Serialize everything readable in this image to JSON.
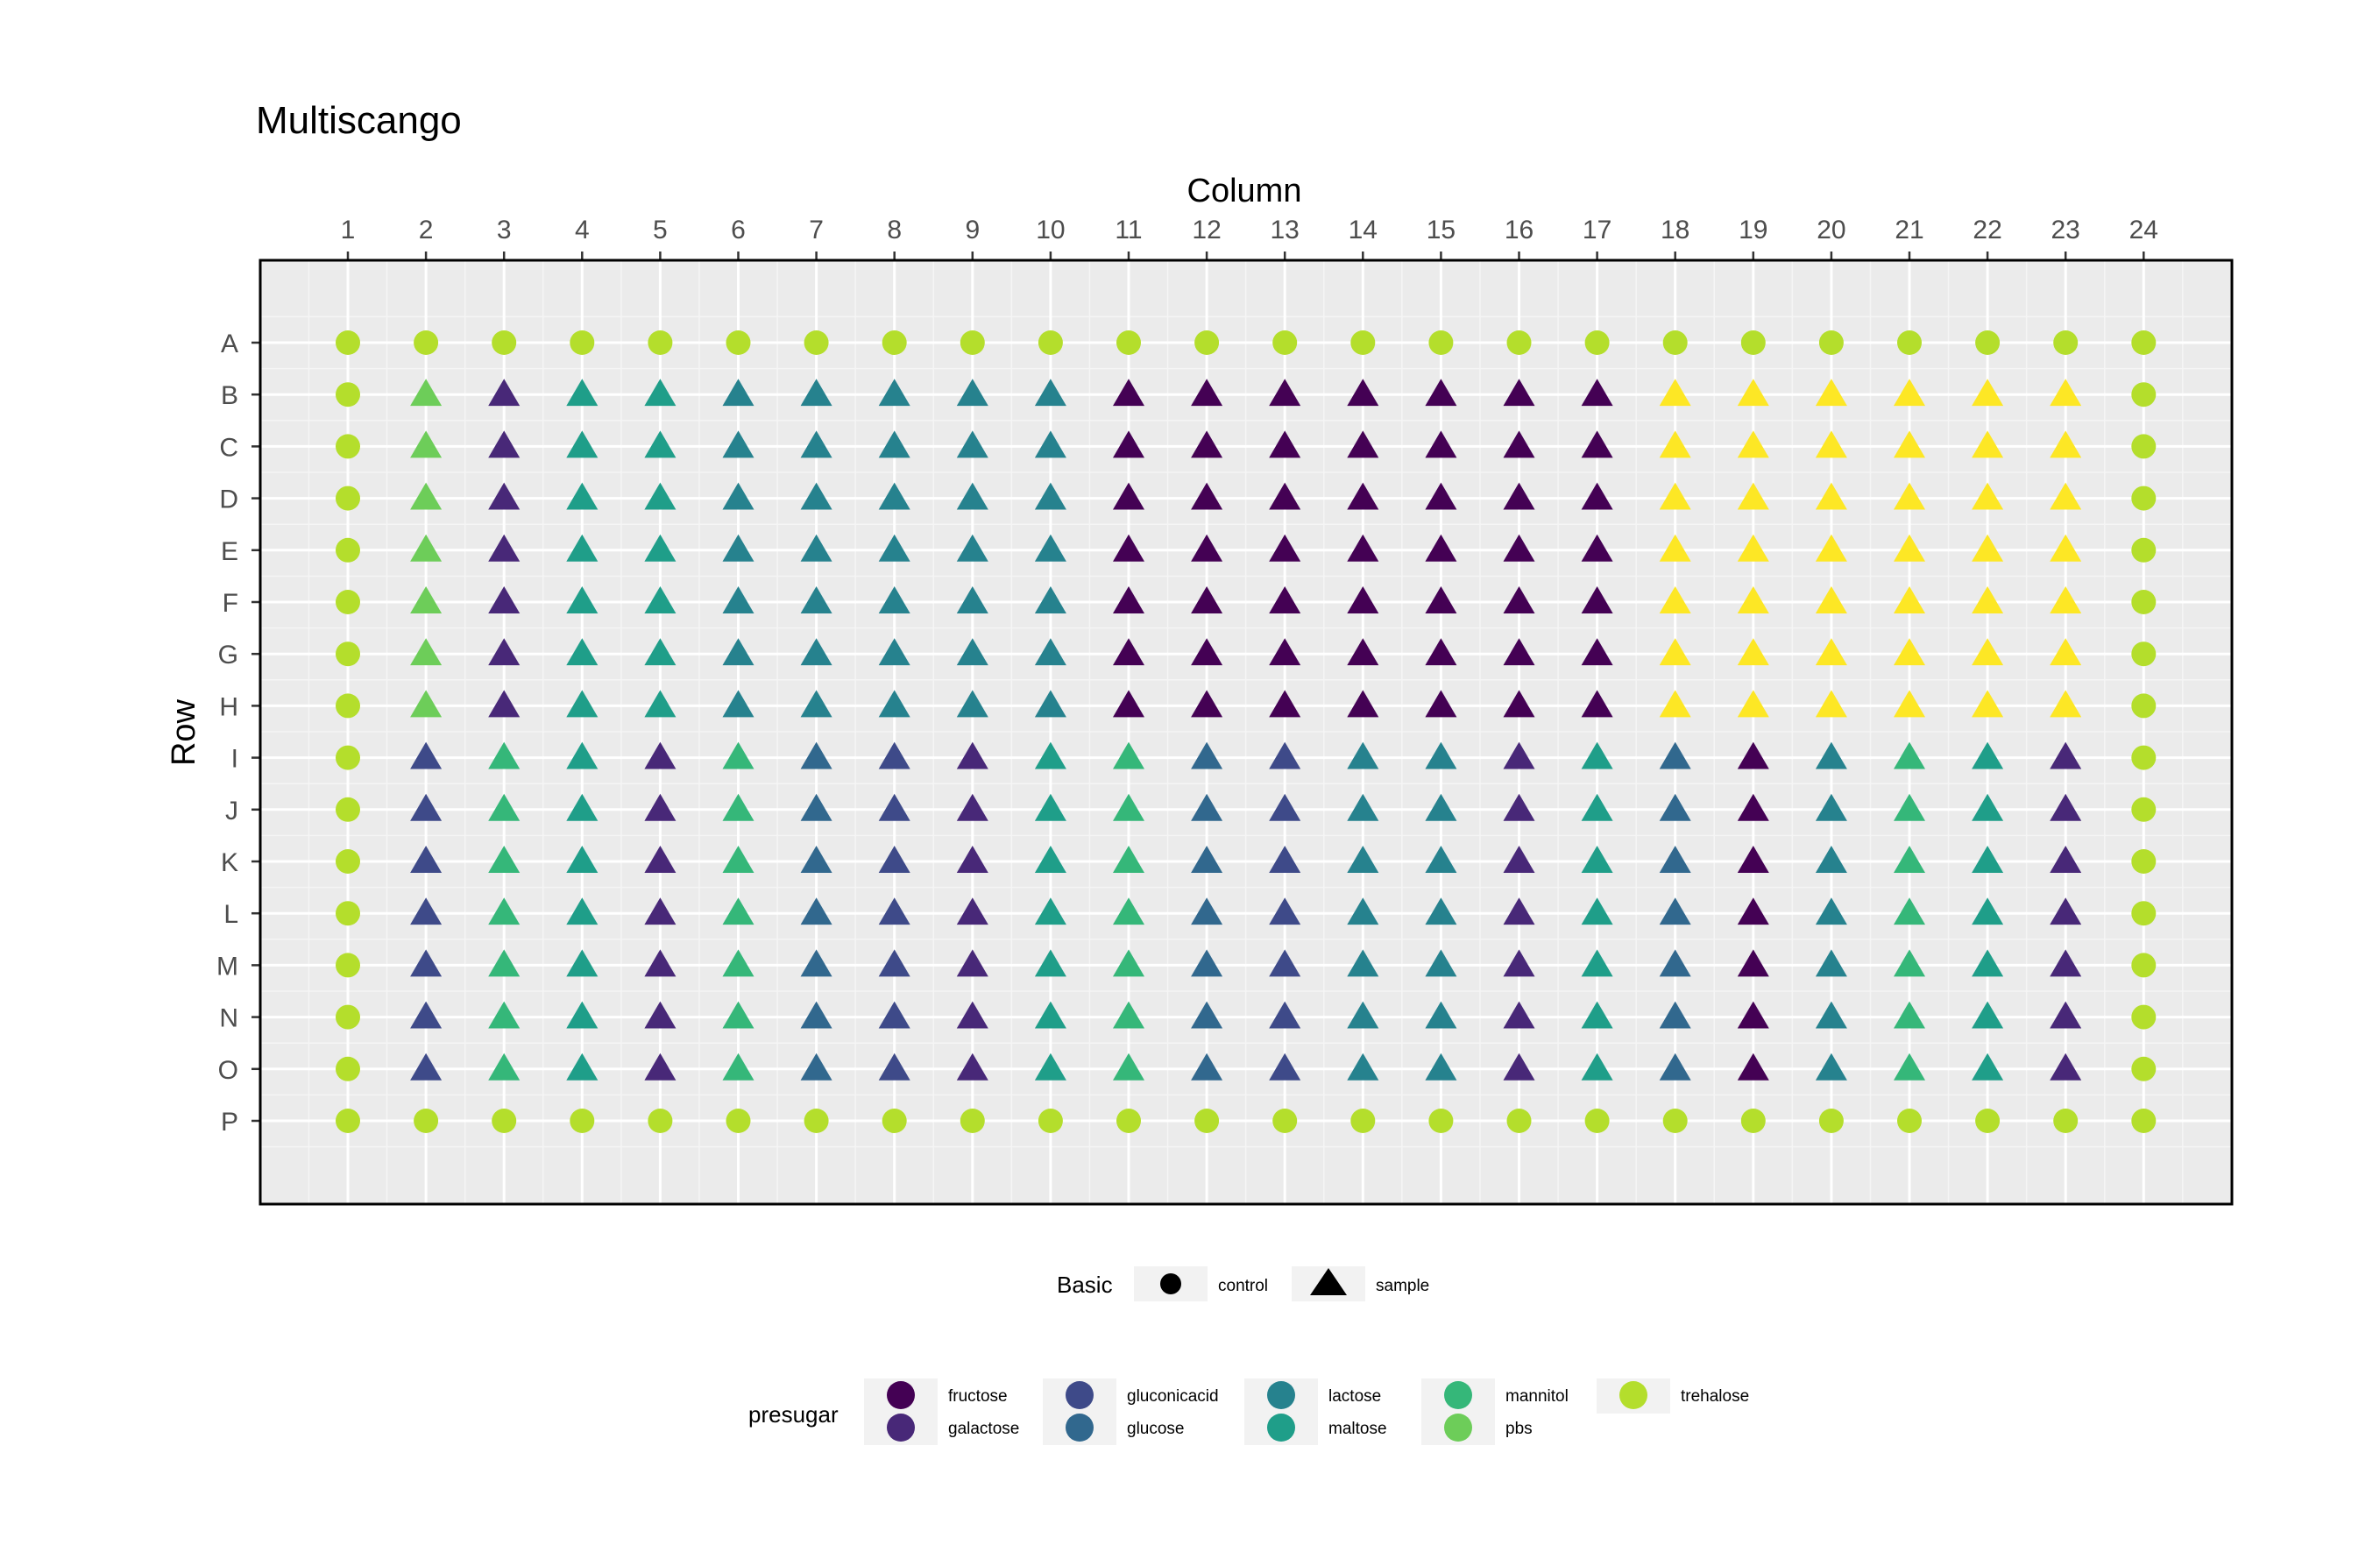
{
  "chart_data": {
    "type": "scatter",
    "title": "Multiscango",
    "xlabel": "Column",
    "ylabel": "Row",
    "columns": [
      "1",
      "2",
      "3",
      "4",
      "5",
      "6",
      "7",
      "8",
      "9",
      "10",
      "11",
      "12",
      "13",
      "14",
      "15",
      "16",
      "17",
      "18",
      "19",
      "20",
      "21",
      "22",
      "23",
      "24"
    ],
    "rows": [
      "A",
      "B",
      "C",
      "D",
      "E",
      "F",
      "G",
      "H",
      "I",
      "J",
      "K",
      "L",
      "M",
      "N",
      "O",
      "P"
    ],
    "grid": true,
    "legends": [
      {
        "title": "Basic",
        "kind": "shape",
        "items": [
          {
            "label": "control",
            "shape": "circle"
          },
          {
            "label": "sample",
            "shape": "triangle"
          }
        ]
      },
      {
        "title": "presugar",
        "kind": "color",
        "items": [
          {
            "label": "fructose",
            "color": "#440154"
          },
          {
            "label": "galactose",
            "color": "#482878"
          },
          {
            "label": "gluconicacid",
            "color": "#3E4A89"
          },
          {
            "label": "glucose",
            "color": "#31688E"
          },
          {
            "label": "lactose",
            "color": "#26828E"
          },
          {
            "label": "maltose",
            "color": "#1F9E89"
          },
          {
            "label": "mannitol",
            "color": "#35B779"
          },
          {
            "label": "pbs",
            "color": "#6DCD59"
          },
          {
            "label": "trehalose",
            "color": "#B4DE2C"
          }
        ]
      }
    ],
    "palette": {
      "fructose": "#440154",
      "galactose": "#482878",
      "gluconicacid": "#3E4A89",
      "glucose": "#31688E",
      "lactose": "#26828E",
      "maltose": "#1F9E89",
      "mannitol": "#35B779",
      "pbs": "#6DCD59",
      "trehalose": "#B4DE2C",
      "extra": "#FDE725"
    },
    "legend_placement": "bottom",
    "wells": {
      "control_rows": [
        "A",
        "P"
      ],
      "control_columns": [
        "1",
        "24"
      ],
      "control_sugar": "trehalose",
      "rows_B_to_H_column_sugars": [
        "pbs",
        "galactose",
        "maltose",
        "maltose",
        "lactose",
        "lactose",
        "lactose",
        "lactose",
        "lactose",
        "fructose",
        "fructose",
        "fructose",
        "fructose",
        "fructose",
        "fructose",
        "fructose",
        "extra",
        "extra",
        "extra",
        "extra",
        "extra",
        "extra"
      ],
      "rows_I_to_O_column_sugars": [
        "gluconicacid",
        "mannitol",
        "maltose",
        "galactose",
        "mannitol",
        "glucose",
        "gluconicacid",
        "galactose",
        "maltose",
        "mannitol",
        "glucose",
        "gluconicacid",
        "lactose",
        "lactose",
        "galactose",
        "maltose",
        "glucose",
        "fructose",
        "lactose",
        "mannitol",
        "maltose",
        "galactose"
      ]
    }
  }
}
